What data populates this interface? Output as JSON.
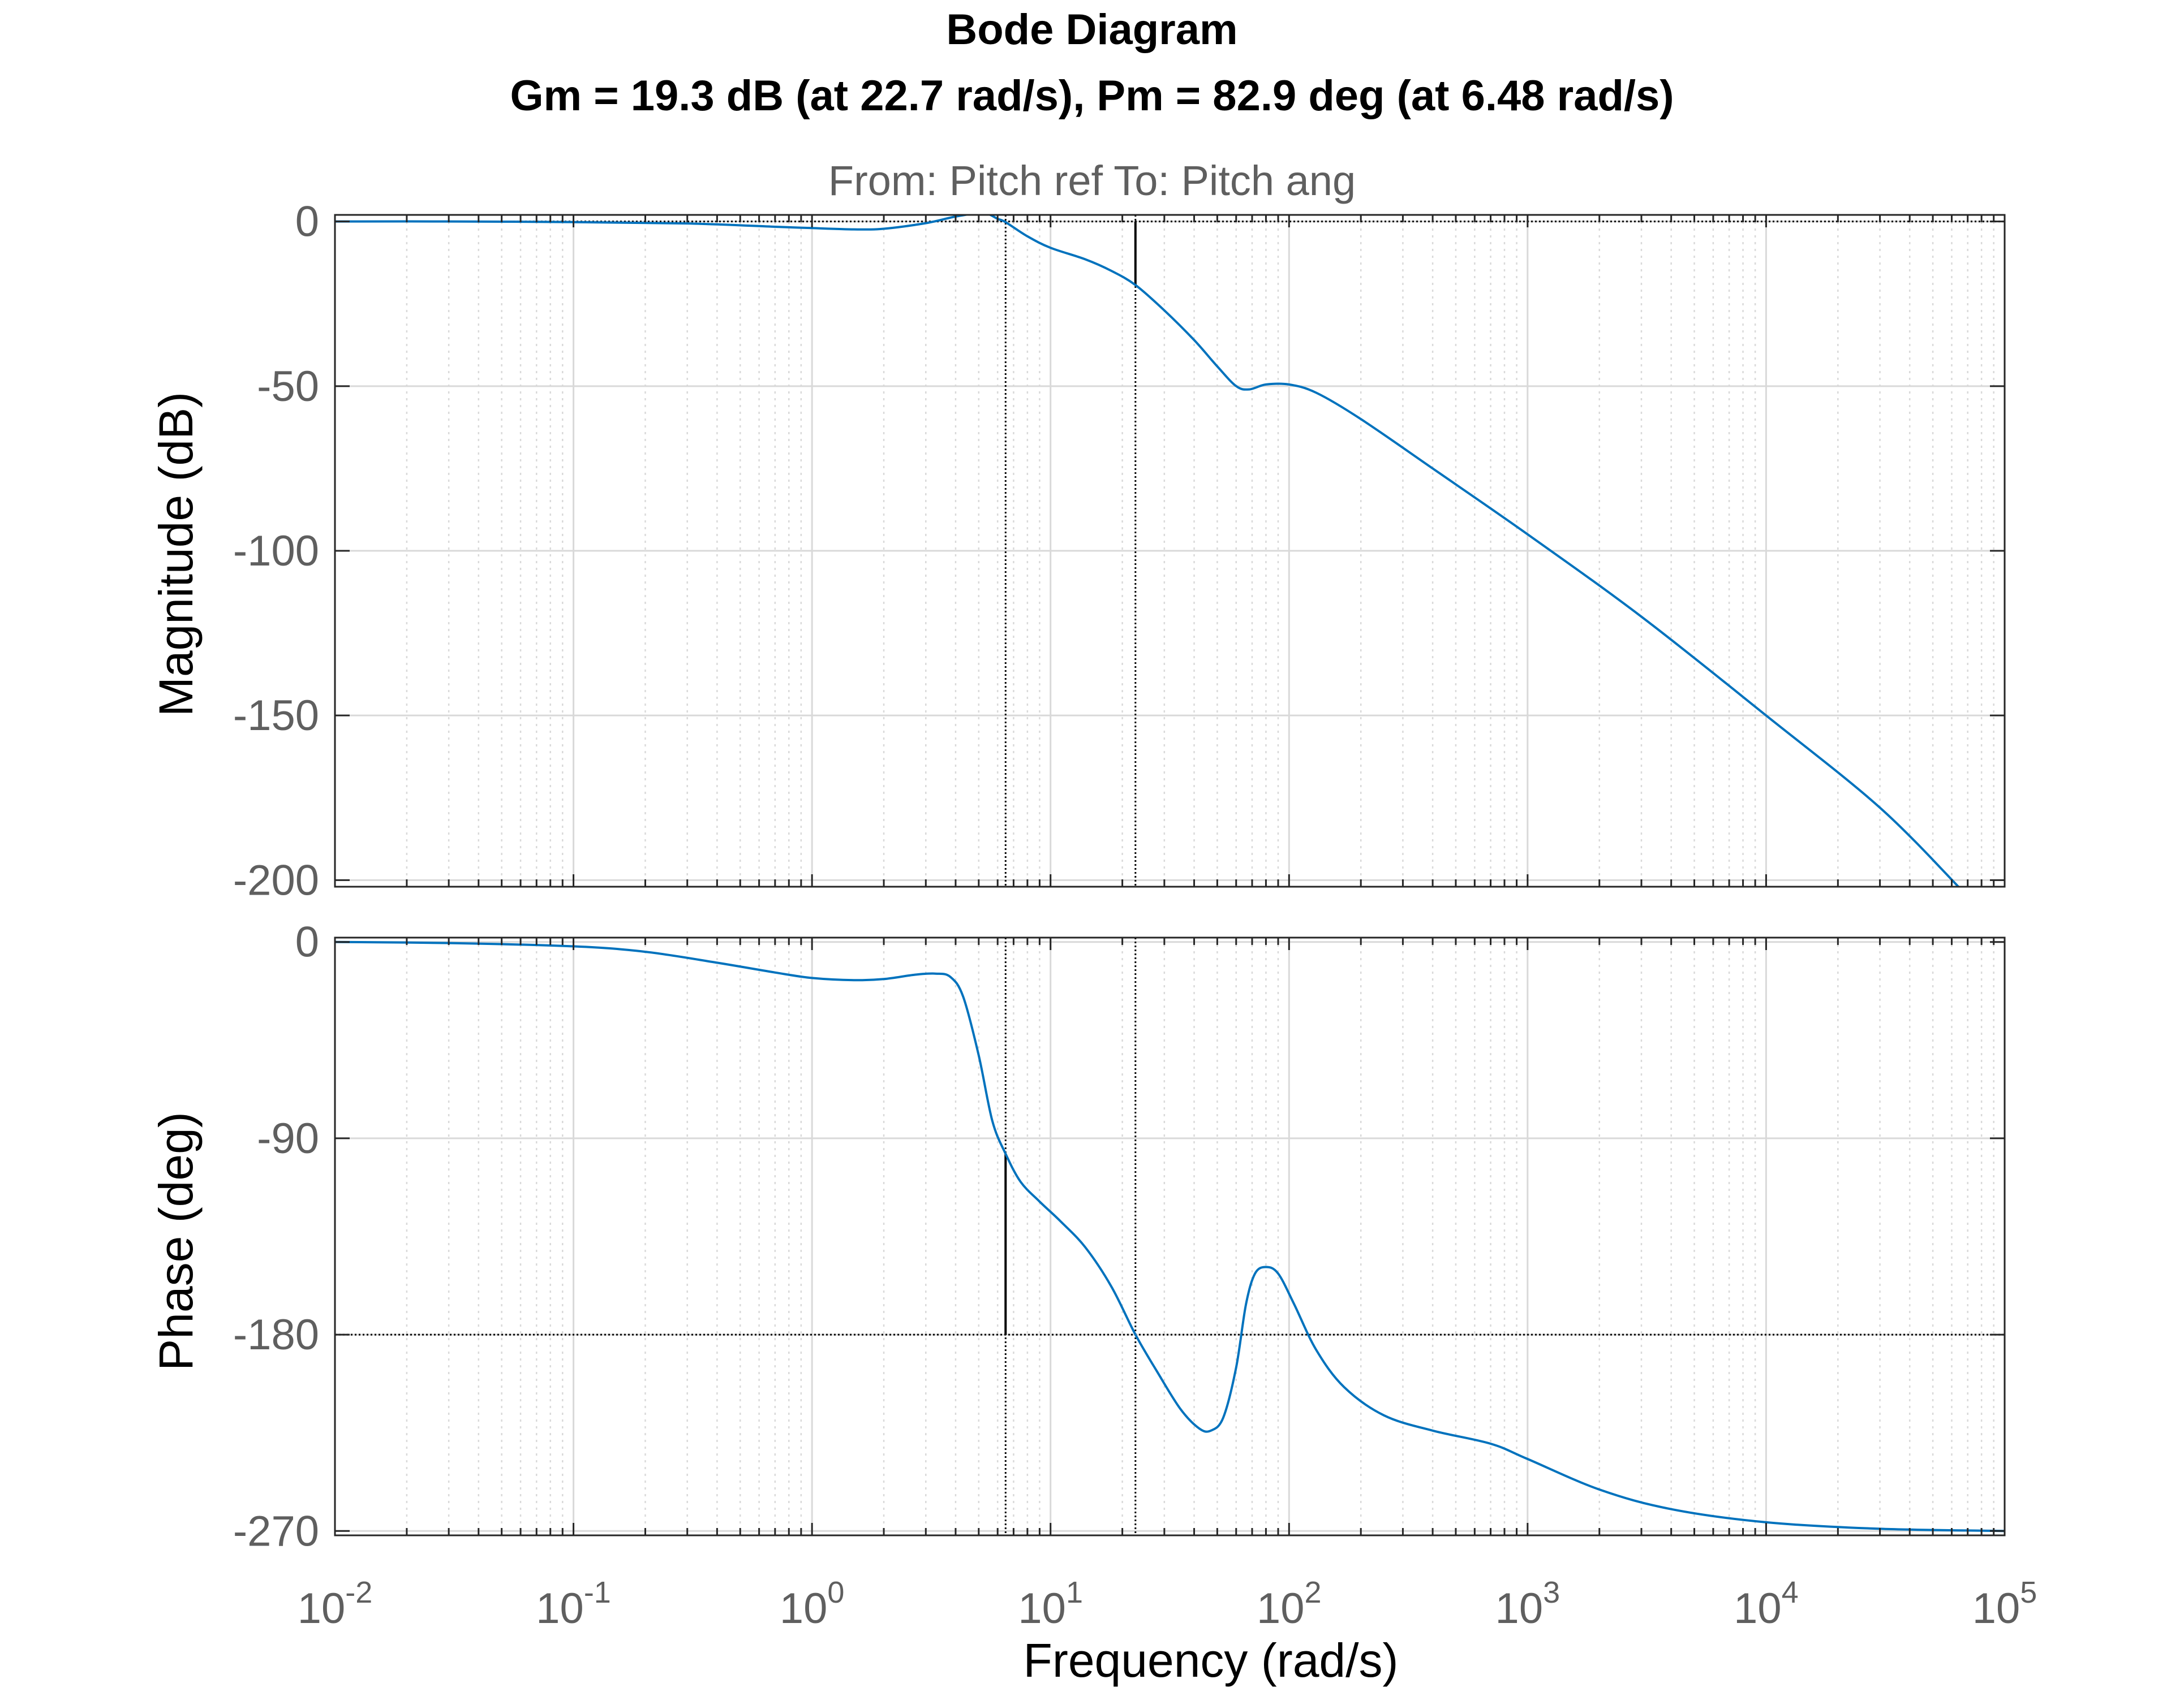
{
  "figure": {
    "title": "Bode Diagram",
    "subtitle": "Gm = 19.3 dB (at 22.7 rad/s),  Pm = 82.9 deg (at 6.48 rad/s)",
    "io_label": "From: Pitch ref  To: Pitch ang",
    "xlabel": "Frequency  (rad/s)"
  },
  "colors": {
    "curve": "#0072BD",
    "axis_text": "#5f5f5f",
    "grid": "#d9d9d9",
    "box": "#262626",
    "marker": "#000000"
  },
  "chart_data": [
    {
      "type": "line",
      "name": "magnitude",
      "ylabel": "Magnitude (dB)",
      "x_scale": "log",
      "xlim": [
        0.01,
        100000
      ],
      "ylim": [
        -202,
        2
      ],
      "yticks": [
        0,
        -50,
        -100,
        -150,
        -200
      ],
      "grid": true,
      "margin_line": {
        "y": 0,
        "x_marker": 22.7,
        "marker_range": [
          -19.3,
          0
        ]
      },
      "crossover_marker": {
        "x": 6.48
      },
      "series": [
        {
          "x": [
            0.01,
            0.03,
            0.1,
            0.3,
            0.7,
            1.0,
            1.5,
            2.0,
            3.0,
            4.0,
            5.0,
            5.5,
            6.0,
            6.48,
            8.0,
            10.0,
            14.0,
            18.0,
            22.7,
            30.0,
            40.0,
            50.0,
            60.0,
            68.0,
            80.0,
            100.0,
            130.0,
            200.0,
            400.0,
            1000.0,
            3000.0,
            10000.0,
            30000.0,
            66000.0
          ],
          "y": [
            0,
            0,
            -0.2,
            -0.6,
            -1.6,
            -2.0,
            -2.4,
            -2.2,
            -0.5,
            1.5,
            2.5,
            2.2,
            0.8,
            -0.2,
            -4.5,
            -8.0,
            -11.5,
            -15.0,
            -19.3,
            -27.0,
            -36.0,
            -44.0,
            -50.0,
            -51.0,
            -49.5,
            -49.5,
            -52.0,
            -60.0,
            -75.0,
            -95.0,
            -120.0,
            -150.0,
            -178.0,
            -203.0
          ]
        }
      ]
    },
    {
      "type": "line",
      "name": "phase",
      "ylabel": "Phase (deg)",
      "xlabel": "Frequency  (rad/s)",
      "x_scale": "log",
      "xlim": [
        0.01,
        100000
      ],
      "ylim": [
        -272,
        2
      ],
      "yticks": [
        0,
        -90,
        -180,
        -270
      ],
      "xticks": [
        "10^-2",
        "10^-1",
        "10^0",
        "10^1",
        "10^2",
        "10^3",
        "10^4",
        "10^5"
      ],
      "grid": true,
      "margin_line": {
        "y": -180,
        "x_marker": 22.7
      },
      "crossover_marker": {
        "x": 6.48,
        "marker_range": [
          -180,
          -97.1
        ]
      },
      "series": [
        {
          "x": [
            0.01,
            0.03,
            0.1,
            0.2,
            0.4,
            0.7,
            1.0,
            1.5,
            2.0,
            2.7,
            3.3,
            3.8,
            4.3,
            5.0,
            5.7,
            6.48,
            7.5,
            9.0,
            11.0,
            14.0,
            18.0,
            22.7,
            28.0,
            35.0,
            42.0,
            47.0,
            53.0,
            60.0,
            66.0,
            72.0,
            80.0,
            90.0,
            105.0,
            130.0,
            170.0,
            250.0,
            400.0,
            700.0,
            1000.0,
            2000.0,
            4000.0,
            10000.0,
            30000.0,
            100000.0
          ],
          "y": [
            0,
            -0.5,
            -2,
            -4.5,
            -9.5,
            -14,
            -16.5,
            -17.5,
            -17,
            -15,
            -14.5,
            -16,
            -25,
            -52,
            -82,
            -97.1,
            -110,
            -119,
            -128,
            -140,
            -158,
            -180,
            -197,
            -214,
            -223,
            -224,
            -218,
            -195,
            -166,
            -152,
            -149,
            -152,
            -166,
            -187,
            -204,
            -217,
            -224,
            -230,
            -237,
            -251,
            -260,
            -266,
            -269,
            -270
          ]
        }
      ]
    }
  ]
}
